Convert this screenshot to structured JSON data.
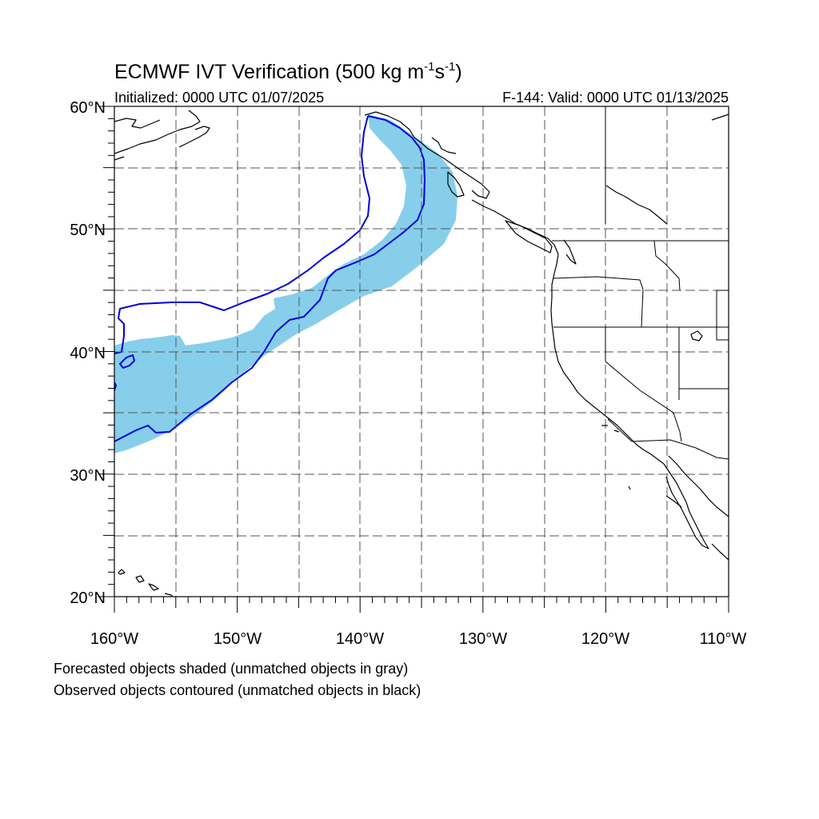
{
  "title": {
    "main": "ECMWF IVT Verification (500 kg m",
    "sup1": "-1",
    "mid": "s",
    "sup2": "-1",
    "end": ")"
  },
  "subtitle": {
    "left": "Initialized: 0000 UTC 01/07/2025",
    "right": "F-144: Valid: 0000 UTC 01/13/2025"
  },
  "map": {
    "lon_range": [
      -160,
      -110
    ],
    "lat_range": [
      20,
      60
    ],
    "lon_ticks": [
      "160°W",
      "150°W",
      "140°W",
      "130°W",
      "120°W",
      "110°W"
    ],
    "lat_ticks": [
      "60°N",
      "50°N",
      "40°N",
      "30°N",
      "20°N"
    ],
    "grid_spacing_deg": 5,
    "grid_style": "dashed",
    "forecast_color": "#87ceeb",
    "observed_color": "#0000dd",
    "coastline_color": "#000000"
  },
  "caption": {
    "line1": "Forecasted objects shaded (unmatched objects in gray)",
    "line2": "Observed objects contoured (unmatched objects in black)"
  }
}
